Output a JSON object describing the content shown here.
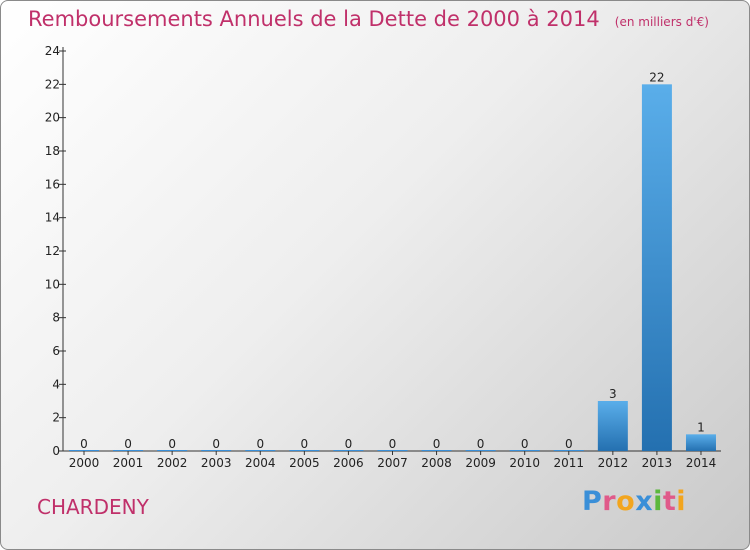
{
  "header": {
    "title": "Remboursements Annuels de la Dette de 2000 à 2014",
    "subtitle": "(en milliers d'€)"
  },
  "footer": {
    "commune": "CHARDENY",
    "logo_letters": [
      {
        "ch": "P",
        "color": "#3a8fd8"
      },
      {
        "ch": "r",
        "color": "#e05a8a"
      },
      {
        "ch": "o",
        "color": "#f2a51e"
      },
      {
        "ch": "x",
        "color": "#3a8fd8"
      },
      {
        "ch": "i",
        "color": "#5cb83c"
      },
      {
        "ch": "t",
        "color": "#e05a8a"
      },
      {
        "ch": "i",
        "color": "#f2a51e"
      }
    ]
  },
  "chart_data": {
    "type": "bar",
    "title": "Remboursements Annuels de la Dette de 2000 à 2014",
    "subtitle": "(en milliers d'€)",
    "xlabel": "",
    "ylabel": "",
    "categories": [
      "2000",
      "2001",
      "2002",
      "2003",
      "2004",
      "2005",
      "2006",
      "2007",
      "2008",
      "2009",
      "2010",
      "2011",
      "2012",
      "2013",
      "2014"
    ],
    "values": [
      0,
      0,
      0,
      0,
      0,
      0,
      0,
      0,
      0,
      0,
      0,
      0,
      3,
      22,
      1
    ],
    "ylim": [
      0,
      24
    ],
    "yticks": [
      0,
      2,
      4,
      6,
      8,
      10,
      12,
      14,
      16,
      18,
      20,
      22,
      24
    ],
    "grid": false,
    "legend": "none",
    "bar_color": "#3a8fd8"
  }
}
